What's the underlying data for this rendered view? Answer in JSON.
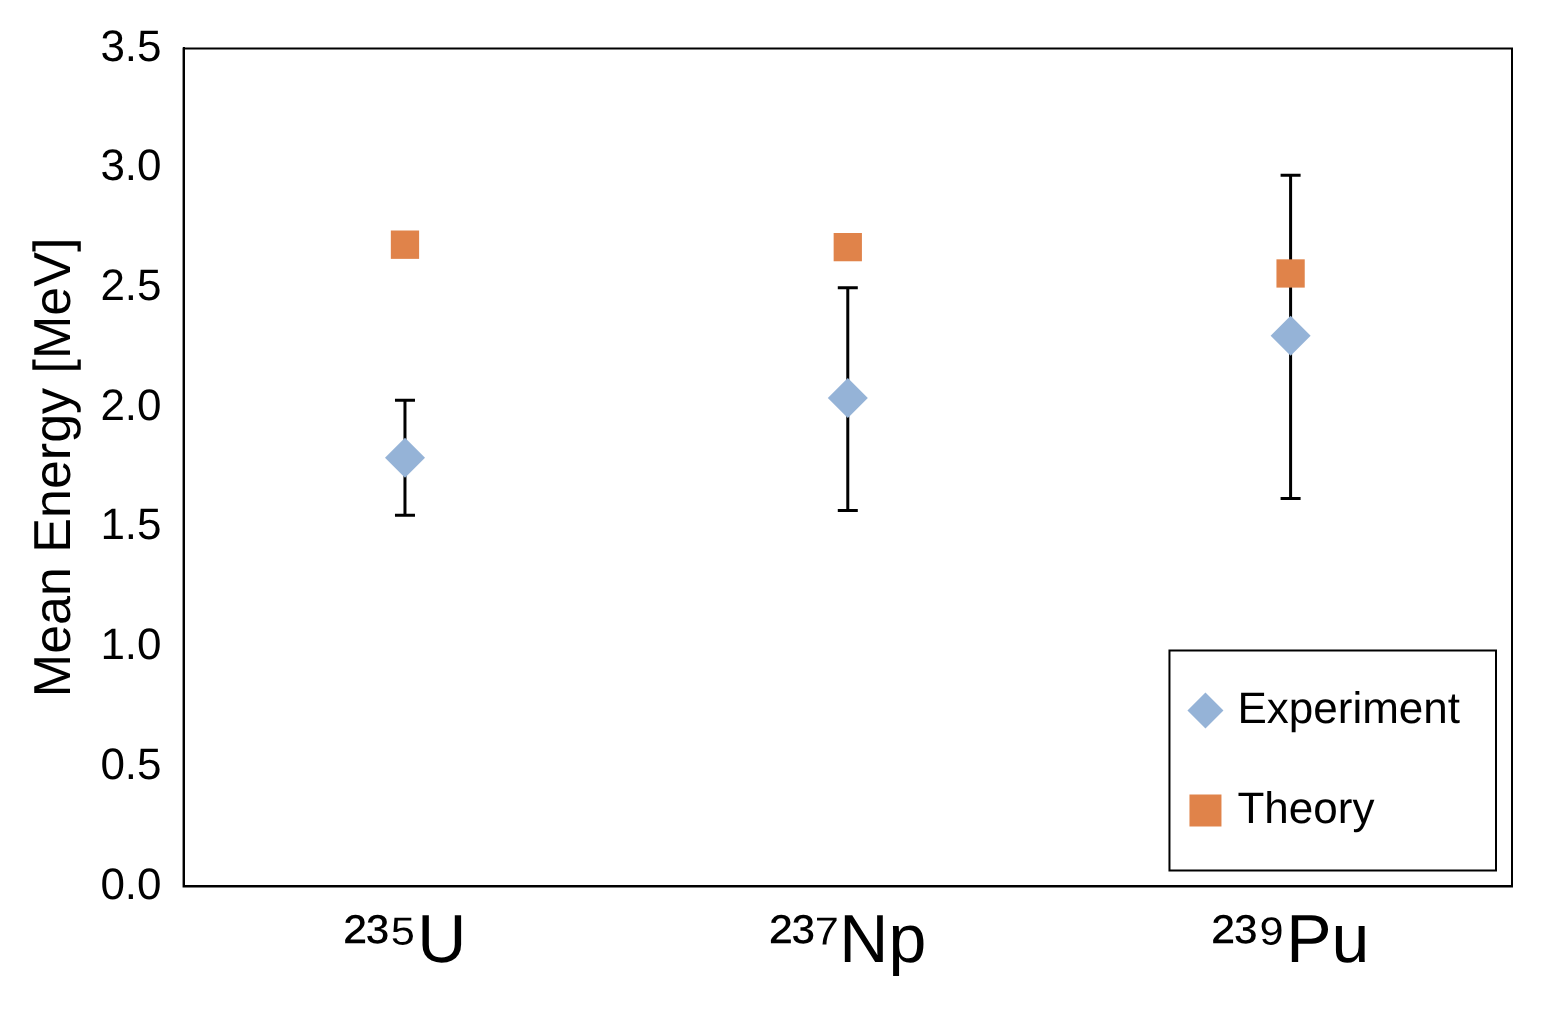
{
  "chart_data": {
    "type": "scatter",
    "ylabel": "Mean Energy [MeV]",
    "categories": [
      "²³⁵U",
      "²³⁷Np",
      "²³⁹Pu"
    ],
    "ylim": [
      0,
      3.5
    ],
    "yticks": [
      {
        "value": 0,
        "label": "0.0"
      },
      {
        "value": 0.5,
        "label": "0.5"
      },
      {
        "value": 1,
        "label": "1.0"
      },
      {
        "value": 1.5,
        "label": "1.5"
      },
      {
        "value": 2,
        "label": "2.0"
      },
      {
        "value": 2.5,
        "label": "2.5"
      },
      {
        "value": 3,
        "label": "3.0"
      },
      {
        "value": 3.5,
        "label": "3.5"
      }
    ],
    "grid": false,
    "legend": "bottom right",
    "series": [
      {
        "name": "Experiment",
        "color": "#95b3d7",
        "marker": "diamond",
        "values": [
          1.79,
          2.04,
          2.3
        ],
        "errors": [
          [
            1.55,
            2.03
          ],
          [
            1.57,
            2.5
          ],
          [
            1.62,
            2.97
          ]
        ]
      },
      {
        "name": "Theory",
        "color": "#e0834a",
        "marker": "square",
        "values": [
          2.68,
          2.67,
          2.56
        ]
      }
    ]
  }
}
